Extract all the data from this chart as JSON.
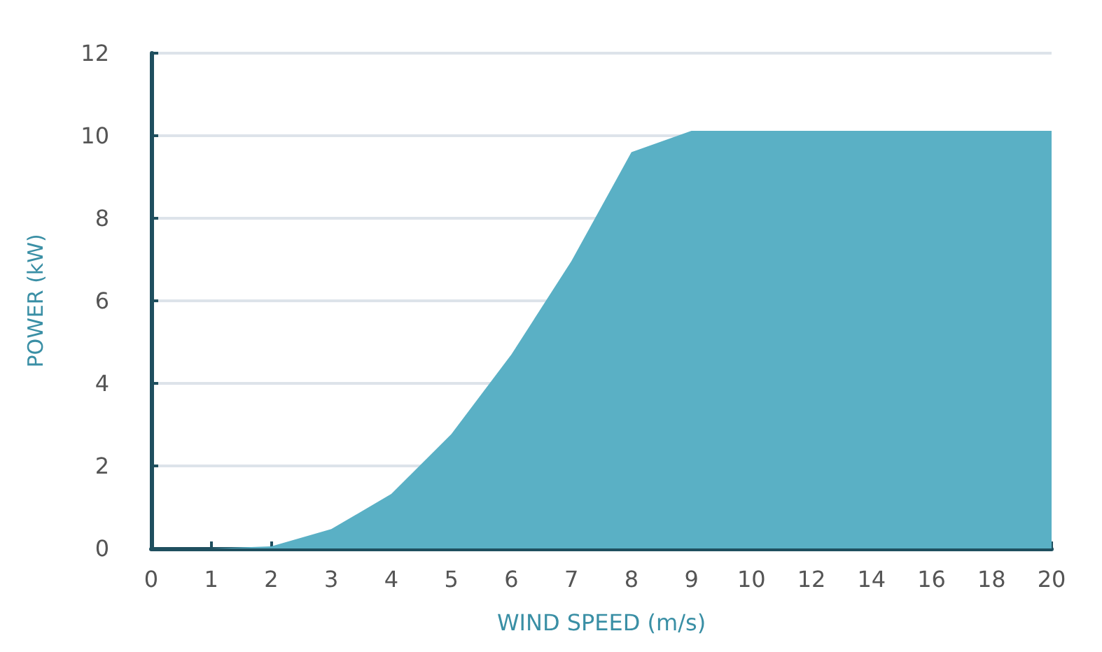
{
  "chart_data": {
    "type": "area",
    "xlabel": "WIND SPEED (m/s)",
    "ylabel": "POWER (kW)",
    "categories": [
      "0",
      "1",
      "2",
      "3",
      "4",
      "5",
      "6",
      "7",
      "8",
      "9",
      "10",
      "12",
      "14",
      "16",
      "18",
      "20"
    ],
    "series": [
      {
        "color": "#5ab0c5",
        "values": [
          0,
          0,
          0.05,
          0.47,
          1.32,
          2.77,
          4.7,
          6.96,
          9.6,
          10.12,
          10.12,
          10.12,
          10.12,
          10.12,
          10.12,
          10.12
        ]
      }
    ],
    "ylim": [
      0,
      12
    ],
    "yticks": [
      0,
      2,
      4,
      6,
      8,
      10,
      12
    ],
    "grid": "y"
  }
}
